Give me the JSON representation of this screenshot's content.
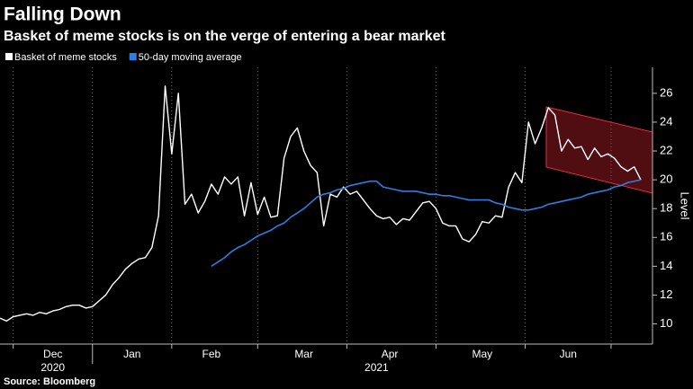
{
  "chart_data": {
    "type": "line",
    "title": "Falling Down",
    "subtitle": "Basket of meme stocks is on the verge of entering a bear market",
    "source": "Source: Bloomberg",
    "y_axis_label": "Level",
    "categories": [
      null,
      null,
      null,
      null,
      null,
      null,
      null,
      null,
      "Dec",
      null,
      null,
      null,
      null,
      null,
      null,
      null,
      null,
      null,
      null,
      null,
      "Jan",
      null,
      null,
      null,
      null,
      null,
      null,
      null,
      null,
      null,
      null,
      null,
      "Feb",
      null,
      null,
      null,
      null,
      null,
      null,
      null,
      null,
      null,
      null,
      null,
      null,
      null,
      "Mar",
      null,
      null,
      null,
      null,
      null,
      null,
      null,
      null,
      null,
      null,
      null,
      null,
      "Apr",
      null,
      null,
      null,
      null,
      null,
      null,
      null,
      null,
      null,
      null,
      null,
      null,
      null,
      "May",
      null,
      null,
      null,
      null,
      null,
      null,
      null,
      null,
      null,
      null,
      null,
      null,
      "Jun",
      null,
      null,
      null,
      null,
      null,
      null,
      null,
      null,
      null,
      null,
      null
    ],
    "years": [
      null,
      null,
      null,
      null,
      null,
      null,
      null,
      null,
      "2020",
      null,
      null,
      null,
      null,
      null,
      null,
      null,
      null,
      null,
      null,
      null,
      null,
      null,
      null,
      null,
      null,
      null,
      null,
      null,
      null,
      null,
      null,
      null,
      null,
      null,
      null,
      null,
      null,
      null,
      null,
      null,
      null,
      null,
      null,
      null,
      null,
      null,
      null,
      null,
      null,
      null,
      null,
      null,
      null,
      null,
      null,
      null,
      null,
      "2021",
      null,
      null,
      null,
      null,
      null,
      null,
      null,
      null,
      null,
      null,
      null,
      null,
      null,
      null,
      null,
      null,
      null,
      null,
      null,
      null,
      null,
      null,
      null,
      null,
      null,
      null,
      null,
      null,
      null,
      null,
      null,
      null,
      null,
      null,
      null,
      null,
      null,
      null,
      null
    ],
    "series": [
      {
        "name": "Basket of meme stocks",
        "color": "#ffffff",
        "values": [
          10.4,
          10.2,
          10.5,
          10.6,
          10.7,
          10.6,
          10.8,
          10.7,
          10.9,
          11.0,
          11.2,
          11.3,
          11.3,
          11.1,
          11.2,
          11.6,
          12.0,
          12.7,
          13.2,
          13.8,
          14.2,
          14.5,
          14.6,
          15.3,
          17.5,
          26.5,
          21.8,
          26.0,
          18.3,
          19.0,
          17.7,
          18.5,
          19.7,
          19.0,
          20.2,
          19.7,
          20.2,
          17.5,
          19.8,
          17.6,
          18.8,
          17.4,
          17.5,
          21.5,
          23.0,
          23.6,
          22.0,
          21.0,
          20.5,
          16.8,
          19.0,
          18.8,
          19.5,
          19.0,
          19.2,
          18.6,
          18.0,
          17.5,
          17.3,
          17.4,
          16.9,
          17.3,
          17.2,
          17.8,
          18.4,
          18.5,
          18.0,
          17.0,
          16.8,
          16.8,
          15.9,
          15.7,
          16.2,
          17.1,
          17.0,
          17.5,
          17.4,
          19.5,
          20.5,
          19.8,
          24.0,
          22.5,
          23.6,
          25.0,
          24.5,
          22.0,
          22.8,
          22.2,
          22.3,
          21.4,
          22.2,
          21.6,
          21.8,
          21.5,
          20.9,
          20.6,
          20.9,
          20.0
        ]
      },
      {
        "name": "50-day moving average",
        "color": "#2f7de1",
        "values": [
          null,
          null,
          null,
          null,
          null,
          null,
          null,
          null,
          null,
          null,
          null,
          null,
          null,
          null,
          null,
          null,
          null,
          null,
          null,
          null,
          null,
          null,
          null,
          null,
          null,
          null,
          null,
          null,
          null,
          null,
          null,
          null,
          14.0,
          14.3,
          14.6,
          15.0,
          15.3,
          15.5,
          15.8,
          16.1,
          16.3,
          16.5,
          16.8,
          17.0,
          17.4,
          17.7,
          18.0,
          18.4,
          18.8,
          19.0,
          19.1,
          19.3,
          19.4,
          19.6,
          19.7,
          19.8,
          19.9,
          19.9,
          19.5,
          19.4,
          19.3,
          19.2,
          19.2,
          19.2,
          19.1,
          19.0,
          19.0,
          18.9,
          18.9,
          18.8,
          18.7,
          18.6,
          18.6,
          18.6,
          18.6,
          18.4,
          18.3,
          18.1,
          18.0,
          17.9,
          17.9,
          18.0,
          18.1,
          18.3,
          18.4,
          18.5,
          18.6,
          18.7,
          18.8,
          19.0,
          19.1,
          19.2,
          19.3,
          19.5,
          19.6,
          19.8,
          19.9,
          20.0
        ]
      }
    ],
    "ylim": [
      8.6,
      27.8
    ],
    "yticks": [
      10,
      12,
      14,
      16,
      18,
      20,
      22,
      24,
      26
    ]
  }
}
